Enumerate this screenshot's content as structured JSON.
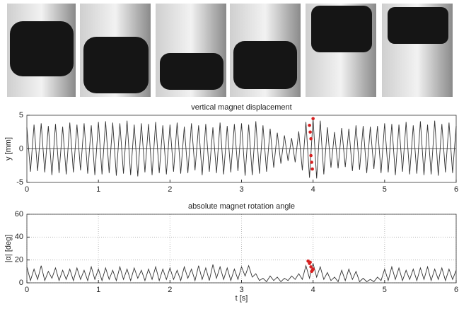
{
  "chart_data": [
    {
      "type": "line",
      "title": "vertical magnet displacement",
      "ylabel": "y [mm]",
      "xlim": [
        0,
        6
      ],
      "xticks": [
        0,
        1,
        2,
        3,
        4,
        5,
        6
      ],
      "ylim": [
        -5,
        5
      ],
      "yticks": [
        -5,
        0,
        5
      ],
      "grid": false,
      "series": [
        {
          "color": "#333333",
          "x": [
            0,
            0.05,
            0.1,
            0.15,
            0.2,
            0.25,
            0.3,
            0.35,
            0.4,
            0.45,
            0.5,
            0.55,
            0.6,
            0.65,
            0.7,
            0.75,
            0.8,
            0.85,
            0.9,
            0.95,
            1,
            1.05,
            1.1,
            1.15,
            1.2,
            1.25,
            1.3,
            1.35,
            1.4,
            1.45,
            1.5,
            1.55,
            1.6,
            1.65,
            1.7,
            1.75,
            1.8,
            1.85,
            1.9,
            1.95,
            2,
            2.05,
            2.1,
            2.15,
            2.2,
            2.25,
            2.3,
            2.35,
            2.4,
            2.45,
            2.5,
            2.55,
            2.6,
            2.65,
            2.7,
            2.75,
            2.8,
            2.85,
            2.9,
            2.95,
            3,
            3.05,
            3.1,
            3.15,
            3.2,
            3.25,
            3.3,
            3.35,
            3.4,
            3.45,
            3.5,
            3.55,
            3.6,
            3.65,
            3.7,
            3.75,
            3.8,
            3.85,
            3.9,
            3.95,
            4,
            4.05,
            4.1,
            4.15,
            4.2,
            4.25,
            4.3,
            4.35,
            4.4,
            4.45,
            4.5,
            4.55,
            4.6,
            4.65,
            4.7,
            4.75,
            4.8,
            4.85,
            4.9,
            4.95,
            5,
            5.05,
            5.1,
            5.15,
            5.2,
            5.25,
            5.3,
            5.35,
            5.4,
            5.45,
            5.5,
            5.55,
            5.6,
            5.65,
            5.7,
            5.75,
            5.8,
            5.85,
            5.9,
            5.95,
            6
          ],
          "values": [
            3.2,
            -3.4,
            3.6,
            -3.3,
            3.8,
            -3.5,
            3.4,
            -3.9,
            3.7,
            -3.6,
            3.3,
            -3.8,
            3.9,
            -3.5,
            3.6,
            -3.2,
            3.8,
            -3.7,
            3.5,
            -3.9,
            4.0,
            -3.8,
            4.1,
            -3.6,
            3.9,
            -4.0,
            3.8,
            -3.7,
            4.2,
            -3.9,
            3.6,
            -4.1,
            3.8,
            -3.5,
            3.7,
            -3.9,
            4.0,
            -3.6,
            3.5,
            -3.8,
            3.6,
            -3.4,
            3.9,
            -3.7,
            3.3,
            -3.6,
            3.8,
            -3.2,
            3.5,
            -3.9,
            3.7,
            -3.4,
            3.2,
            -3.6,
            3.9,
            -3.8,
            3.4,
            -3.5,
            3.7,
            -3.3,
            3.8,
            -4.0,
            3.6,
            -3.9,
            4.1,
            -3.7,
            3.5,
            -3.4,
            3.0,
            -2.8,
            2.4,
            -2.2,
            2.0,
            -1.8,
            1.6,
            -2.0,
            2.6,
            -3.2,
            4.0,
            -4.3,
            4.5,
            -4.4,
            4.2,
            -3.8,
            3.2,
            -2.8,
            2.5,
            -2.9,
            3.1,
            -2.7,
            3.0,
            -3.3,
            3.5,
            -3.1,
            3.4,
            -3.6,
            3.3,
            -3.0,
            3.4,
            -3.6,
            3.8,
            -3.5,
            3.7,
            -3.9,
            3.6,
            -3.4,
            4.0,
            -3.8,
            3.5,
            -3.7,
            4.1,
            -3.9,
            3.6,
            -3.8,
            4.2,
            -4.0,
            3.7,
            -3.5,
            3.9,
            -3.6,
            3.4
          ]
        },
        {
          "color": "#d62020",
          "style": "markers",
          "x": [
            3.95,
            3.96,
            3.97,
            3.97,
            3.98,
            3.99,
            4.0
          ],
          "values": [
            3.5,
            2.5,
            1.5,
            -1.0,
            -2.0,
            -3.0,
            4.5
          ]
        }
      ]
    },
    {
      "type": "line",
      "title": "absolute magnet rotation angle",
      "ylabel": "|α| [deg]",
      "xlabel": "t [s]",
      "xlim": [
        0,
        6
      ],
      "xticks": [
        0,
        1,
        2,
        3,
        4,
        5,
        6
      ],
      "ylim": [
        0,
        60
      ],
      "yticks": [
        0,
        20,
        40,
        60
      ],
      "grid": true,
      "series": [
        {
          "color": "#333333",
          "x": [
            0,
            0.05,
            0.1,
            0.15,
            0.2,
            0.25,
            0.3,
            0.35,
            0.4,
            0.45,
            0.5,
            0.55,
            0.6,
            0.65,
            0.7,
            0.75,
            0.8,
            0.85,
            0.9,
            0.95,
            1,
            1.05,
            1.1,
            1.15,
            1.2,
            1.25,
            1.3,
            1.35,
            1.4,
            1.45,
            1.5,
            1.55,
            1.6,
            1.65,
            1.7,
            1.75,
            1.8,
            1.85,
            1.9,
            1.95,
            2,
            2.05,
            2.1,
            2.15,
            2.2,
            2.25,
            2.3,
            2.35,
            2.4,
            2.45,
            2.5,
            2.55,
            2.6,
            2.65,
            2.7,
            2.75,
            2.8,
            2.85,
            2.9,
            2.95,
            3,
            3.05,
            3.1,
            3.15,
            3.2,
            3.25,
            3.3,
            3.35,
            3.4,
            3.45,
            3.5,
            3.55,
            3.6,
            3.65,
            3.7,
            3.75,
            3.8,
            3.85,
            3.9,
            3.95,
            4,
            4.05,
            4.1,
            4.15,
            4.2,
            4.25,
            4.3,
            4.35,
            4.4,
            4.45,
            4.5,
            4.55,
            4.6,
            4.65,
            4.7,
            4.75,
            4.8,
            4.85,
            4.9,
            4.95,
            5,
            5.05,
            5.1,
            5.15,
            5.2,
            5.25,
            5.3,
            5.35,
            5.4,
            5.45,
            5.5,
            5.55,
            5.6,
            5.65,
            5.7,
            5.75,
            5.8,
            5.85,
            5.9,
            5.95,
            6
          ],
          "values": [
            14,
            2,
            12,
            3,
            15,
            2,
            10,
            4,
            13,
            2,
            11,
            3,
            12,
            2,
            13,
            3,
            11,
            2,
            14,
            3,
            12,
            2,
            13,
            3,
            11,
            2,
            14,
            3,
            12,
            2,
            13,
            4,
            11,
            2,
            12,
            3,
            14,
            2,
            12,
            3,
            13,
            3,
            11,
            2,
            14,
            4,
            12,
            2,
            15,
            3,
            13,
            2,
            16,
            4,
            14,
            3,
            13,
            2,
            12,
            3,
            14,
            6,
            15,
            5,
            8,
            2,
            4,
            1,
            6,
            2,
            5,
            1,
            4,
            2,
            6,
            3,
            8,
            3,
            15,
            4,
            17,
            5,
            14,
            3,
            9,
            2,
            5,
            1,
            11,
            2,
            12,
            3,
            10,
            1,
            4,
            1,
            3,
            1,
            5,
            2,
            12,
            2,
            14,
            3,
            13,
            2,
            11,
            3,
            12,
            2,
            13,
            3,
            14,
            2,
            12,
            3,
            13,
            2,
            12,
            3,
            11
          ]
        },
        {
          "color": "#d62020",
          "style": "markers",
          "x": [
            3.93,
            3.95,
            3.96,
            3.97,
            3.98,
            3.99,
            4.0
          ],
          "values": [
            19,
            17,
            18,
            14,
            10,
            11,
            12
          ]
        }
      ]
    }
  ]
}
